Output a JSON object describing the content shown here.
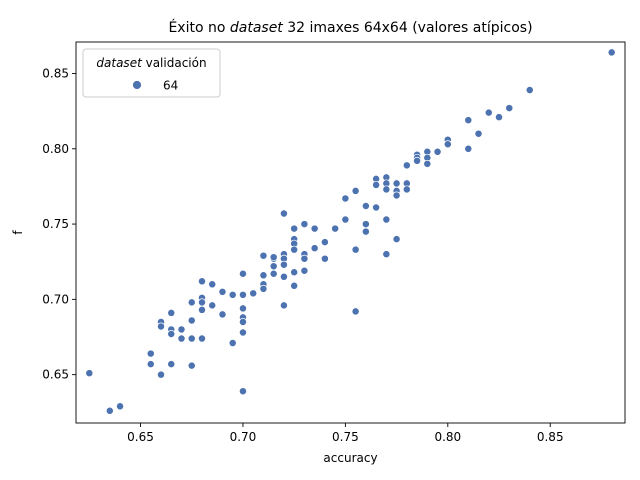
{
  "chart_data": {
    "type": "scatter",
    "title": {
      "prefix": "Éxito no ",
      "italic": "dataset",
      "suffix": " 32 imaxes 64x64 (valores atípicos)"
    },
    "xlabel": "accuracy",
    "ylabel": "f",
    "xlim": [
      0.6185,
      0.8865
    ],
    "ylim": [
      0.6179,
      0.8709
    ],
    "xticks": [
      0.65,
      0.7,
      0.75,
      0.8,
      0.85
    ],
    "xtick_labels": [
      "0.65",
      "0.70",
      "0.75",
      "0.80",
      "0.85"
    ],
    "yticks": [
      0.65,
      0.7,
      0.75,
      0.8,
      0.85
    ],
    "ytick_labels": [
      "0.65",
      "0.70",
      "0.75",
      "0.80",
      "0.85"
    ],
    "grid": false,
    "legend": {
      "title_italic": "dataset",
      "title_rest": " validación",
      "placement": "upper-left"
    },
    "series": [
      {
        "name": "64",
        "color": "#4C72B0",
        "points": [
          [
            0.625,
            0.651
          ],
          [
            0.635,
            0.626
          ],
          [
            0.64,
            0.629
          ],
          [
            0.655,
            0.664
          ],
          [
            0.655,
            0.657
          ],
          [
            0.66,
            0.65
          ],
          [
            0.66,
            0.685
          ],
          [
            0.66,
            0.682
          ],
          [
            0.665,
            0.691
          ],
          [
            0.665,
            0.68
          ],
          [
            0.665,
            0.677
          ],
          [
            0.665,
            0.657
          ],
          [
            0.67,
            0.68
          ],
          [
            0.67,
            0.674
          ],
          [
            0.675,
            0.698
          ],
          [
            0.675,
            0.686
          ],
          [
            0.675,
            0.674
          ],
          [
            0.675,
            0.656
          ],
          [
            0.68,
            0.712
          ],
          [
            0.68,
            0.701
          ],
          [
            0.68,
            0.698
          ],
          [
            0.68,
            0.693
          ],
          [
            0.68,
            0.674
          ],
          [
            0.685,
            0.71
          ],
          [
            0.685,
            0.696
          ],
          [
            0.69,
            0.705
          ],
          [
            0.69,
            0.69
          ],
          [
            0.695,
            0.703
          ],
          [
            0.695,
            0.671
          ],
          [
            0.7,
            0.717
          ],
          [
            0.7,
            0.703
          ],
          [
            0.7,
            0.694
          ],
          [
            0.7,
            0.688
          ],
          [
            0.7,
            0.685
          ],
          [
            0.7,
            0.678
          ],
          [
            0.7,
            0.639
          ],
          [
            0.705,
            0.704
          ],
          [
            0.71,
            0.729
          ],
          [
            0.71,
            0.716
          ],
          [
            0.71,
            0.71
          ],
          [
            0.71,
            0.707
          ],
          [
            0.715,
            0.727
          ],
          [
            0.715,
            0.722
          ],
          [
            0.715,
            0.717
          ],
          [
            0.715,
            0.728
          ],
          [
            0.72,
            0.757
          ],
          [
            0.72,
            0.73
          ],
          [
            0.72,
            0.727
          ],
          [
            0.72,
            0.723
          ],
          [
            0.72,
            0.715
          ],
          [
            0.72,
            0.696
          ],
          [
            0.725,
            0.747
          ],
          [
            0.725,
            0.74
          ],
          [
            0.725,
            0.737
          ],
          [
            0.725,
            0.733
          ],
          [
            0.725,
            0.718
          ],
          [
            0.725,
            0.709
          ],
          [
            0.73,
            0.75
          ],
          [
            0.73,
            0.73
          ],
          [
            0.73,
            0.727
          ],
          [
            0.73,
            0.719
          ],
          [
            0.735,
            0.747
          ],
          [
            0.735,
            0.734
          ],
          [
            0.74,
            0.738
          ],
          [
            0.74,
            0.727
          ],
          [
            0.745,
            0.747
          ],
          [
            0.75,
            0.767
          ],
          [
            0.75,
            0.753
          ],
          [
            0.755,
            0.772
          ],
          [
            0.755,
            0.733
          ],
          [
            0.755,
            0.692
          ],
          [
            0.76,
            0.762
          ],
          [
            0.76,
            0.75
          ],
          [
            0.76,
            0.745
          ],
          [
            0.765,
            0.78
          ],
          [
            0.765,
            0.776
          ],
          [
            0.765,
            0.761
          ],
          [
            0.77,
            0.781
          ],
          [
            0.77,
            0.777
          ],
          [
            0.77,
            0.773
          ],
          [
            0.77,
            0.753
          ],
          [
            0.77,
            0.73
          ],
          [
            0.775,
            0.777
          ],
          [
            0.775,
            0.772
          ],
          [
            0.775,
            0.769
          ],
          [
            0.775,
            0.74
          ],
          [
            0.78,
            0.789
          ],
          [
            0.78,
            0.777
          ],
          [
            0.78,
            0.773
          ],
          [
            0.785,
            0.796
          ],
          [
            0.785,
            0.794
          ],
          [
            0.785,
            0.792
          ],
          [
            0.79,
            0.798
          ],
          [
            0.79,
            0.794
          ],
          [
            0.79,
            0.79
          ],
          [
            0.795,
            0.798
          ],
          [
            0.8,
            0.806
          ],
          [
            0.8,
            0.803
          ],
          [
            0.81,
            0.819
          ],
          [
            0.81,
            0.8
          ],
          [
            0.815,
            0.81
          ],
          [
            0.82,
            0.824
          ],
          [
            0.825,
            0.821
          ],
          [
            0.83,
            0.827
          ],
          [
            0.84,
            0.839
          ],
          [
            0.88,
            0.864
          ]
        ]
      }
    ]
  }
}
